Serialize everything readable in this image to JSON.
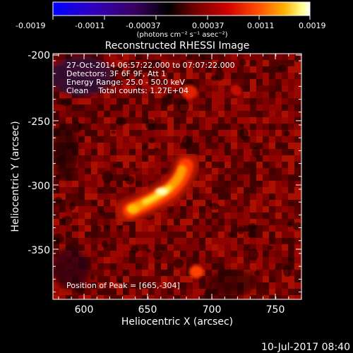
{
  "colorbar": {
    "tick_labels": [
      "-0.0019",
      "-0.0011",
      "-0.00037",
      "0.00037",
      "0.0011",
      "0.0019"
    ],
    "units_label": "(photons cm⁻² s⁻¹ asec⁻²)",
    "colormap": [
      "#0000ff",
      "#2a00c8",
      "#5500a0",
      "#000000",
      "#6a0000",
      "#b00000",
      "#ff2000",
      "#ff7000",
      "#ffc000",
      "#ffff80",
      "#ffffff"
    ]
  },
  "title": "Reconstructed RHESSI Image",
  "info": {
    "time_range": "27-Oct-2014 06:57:22.000 to 07:07:22.000",
    "detectors": "Detectors: 3F 6F 9F, Att 1",
    "energy": "Energy Range: 25.0 - 50.0 keV",
    "clean": "Clean    Total counts: 1.27E+04"
  },
  "peak_label": "Position of Peak = [665,-304]",
  "axes": {
    "xlabel": "Heliocentric X (arcsec)",
    "ylabel": "Heliocentric Y (arcsec)",
    "x_ticks": [
      "600",
      "650",
      "700",
      "750"
    ],
    "y_ticks": [
      "-200",
      "-250",
      "-300",
      "-350"
    ]
  },
  "footer_date": "10-Jul-2017 08:40"
}
